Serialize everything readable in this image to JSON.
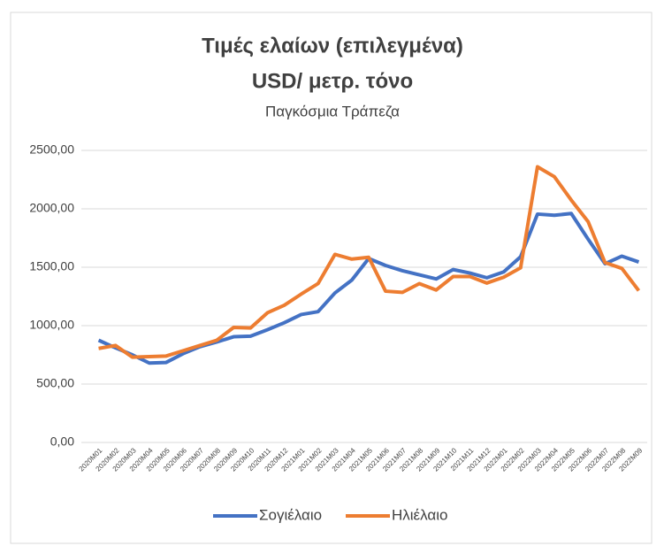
{
  "chart_data": {
    "type": "line",
    "title": "Τιμές ελαίων (επιλεγμένα)",
    "title_line2": "USD/ μετρ. τόνο",
    "subtitle": "Παγκόσμια Τράπεζα",
    "categories": [
      "2020M01",
      "2020M02",
      "2020M03",
      "2020M04",
      "2020M05",
      "2020M06",
      "2020M07",
      "2020M08",
      "2020M09",
      "2020M10",
      "2020M11",
      "2020M12",
      "2021M01",
      "2021M02",
      "2021M03",
      "2021M04",
      "2021M05",
      "2021M06",
      "2021M07",
      "2021M08",
      "2021M09",
      "2021M10",
      "2021M11",
      "2021M12",
      "2022M01",
      "2022M02",
      "2022M03",
      "2022M04",
      "2022M05",
      "2022M06",
      "2022M07",
      "2022M08",
      "2022M09"
    ],
    "series": [
      {
        "name": "Σογιέλαιο",
        "color": "#4472c4",
        "values": [
          875,
          810,
          750,
          680,
          685,
          760,
          820,
          860,
          905,
          910,
          965,
          1025,
          1095,
          1120,
          1280,
          1390,
          1575,
          1515,
          1470,
          1435,
          1400,
          1480,
          1450,
          1410,
          1460,
          1590,
          1955,
          1945,
          1960,
          1740,
          1530,
          1595,
          1545
        ]
      },
      {
        "name": "Ηλιέλαιο",
        "color": "#ed7d31",
        "values": [
          805,
          830,
          730,
          735,
          740,
          785,
          830,
          875,
          985,
          980,
          1110,
          1175,
          1270,
          1360,
          1610,
          1570,
          1585,
          1295,
          1285,
          1360,
          1305,
          1420,
          1420,
          1365,
          1415,
          1495,
          2360,
          2275,
          2075,
          1890,
          1540,
          1490,
          1300
        ]
      }
    ],
    "ylim": [
      0,
      2500
    ],
    "yticks": [
      {
        "value": 0,
        "label": "0,00"
      },
      {
        "value": 500,
        "label": "500,00"
      },
      {
        "value": 1000,
        "label": "1000,00"
      },
      {
        "value": 1500,
        "label": "1500,00"
      },
      {
        "value": 2000,
        "label": "2000,00"
      },
      {
        "value": 2500,
        "label": "2500,00"
      }
    ],
    "grid": true,
    "legend": "bottom"
  }
}
